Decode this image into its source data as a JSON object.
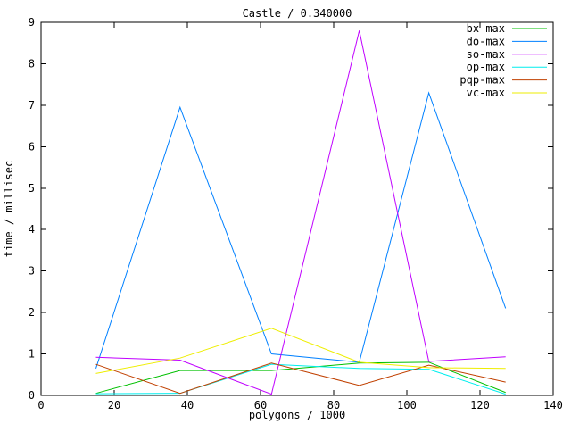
{
  "window": {
    "background": "#ffffff",
    "text_color": "#000000",
    "frame_color": "#000000"
  },
  "chart_data": {
    "type": "line",
    "title": "Castle / 0.340000",
    "xlabel": "polygons / 1000",
    "ylabel": "time / millisec",
    "xlim": [
      0,
      140
    ],
    "ylim": [
      0,
      9
    ],
    "x_ticks": [
      0,
      20,
      40,
      60,
      80,
      100,
      120,
      140
    ],
    "y_ticks": [
      0,
      1,
      2,
      3,
      4,
      5,
      6,
      7,
      8,
      9
    ],
    "grid": false,
    "legend_position": "top-right-inside",
    "x": [
      15,
      38,
      63,
      87,
      106,
      127
    ],
    "series": [
      {
        "name": "bx-max",
        "color": "#00c000",
        "values": [
          0.05,
          0.6,
          0.6,
          0.78,
          0.8,
          0.07
        ]
      },
      {
        "name": "do-max",
        "color": "#0080ff",
        "values": [
          0.65,
          6.95,
          1.0,
          0.8,
          7.3,
          2.1
        ]
      },
      {
        "name": "so-max",
        "color": "#c000ff",
        "values": [
          0.92,
          0.85,
          0.03,
          8.8,
          0.82,
          0.93
        ]
      },
      {
        "name": "op-max",
        "color": "#00eeee",
        "values": [
          0.04,
          0.05,
          0.75,
          0.65,
          0.63,
          0.03
        ]
      },
      {
        "name": "pqp-max",
        "color": "#c04000",
        "values": [
          0.75,
          0.05,
          0.78,
          0.24,
          0.73,
          0.32
        ]
      },
      {
        "name": "vc-max",
        "color": "#eeee00",
        "values": [
          0.53,
          0.9,
          1.62,
          0.8,
          0.67,
          0.65
        ]
      }
    ]
  }
}
